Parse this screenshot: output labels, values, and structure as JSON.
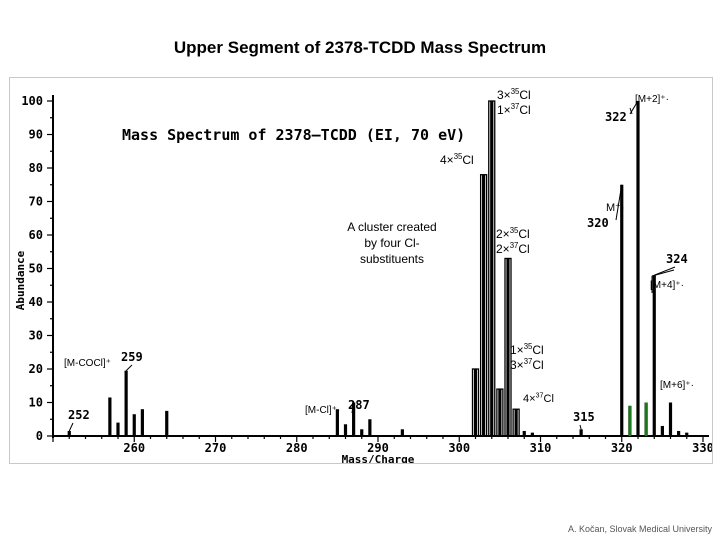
{
  "slide": {
    "title": "Upper Segment of 2378-TCDD Mass Spectrum",
    "credit": "A. Kočan, Slovak Medical University"
  },
  "chart_data": {
    "type": "bar",
    "title": "Mass Spectrum of 2378–TCDD (EI, 70 eV)",
    "xlabel": "Mass/Charge",
    "ylabel": "Abundance",
    "xlim": [
      250,
      330
    ],
    "ylim": [
      0,
      100
    ],
    "x_ticks": [
      260,
      270,
      280,
      290,
      300,
      310,
      320,
      330
    ],
    "y_ticks": [
      0,
      10,
      20,
      30,
      40,
      50,
      60,
      70,
      80,
      90,
      100
    ],
    "grid": false,
    "series": [
      {
        "x": [
          252,
          257,
          258,
          259,
          260,
          261,
          264,
          285,
          286,
          287,
          288,
          289,
          293,
          302,
          303,
          304,
          305,
          306,
          307,
          308,
          309,
          315,
          320,
          321,
          322,
          323,
          324,
          325,
          326,
          327,
          328
        ],
        "values": [
          1.5,
          11.5,
          4,
          19.5,
          6.5,
          8,
          7.5,
          8,
          3.5,
          10,
          2,
          5,
          2,
          20,
          78,
          100,
          14,
          53,
          8,
          1.5,
          1,
          2,
          75,
          9,
          100,
          10,
          48,
          3,
          10,
          1.5,
          1
        ]
      }
    ],
    "peak_labels": [
      {
        "text": "252",
        "x": 252
      },
      {
        "text": "259",
        "x": 259
      },
      {
        "text": "287",
        "x": 287
      },
      {
        "text": "315",
        "x": 315
      },
      {
        "text": "320",
        "x": 320
      },
      {
        "text": "322",
        "x": 322
      },
      {
        "text": "324",
        "x": 324
      }
    ],
    "annotations": [
      {
        "id": "cl3",
        "line1": "3×",
        "sup1": "35",
        "rest1": "Cl",
        "line2": "1×",
        "sup2": "37",
        "rest2": "Cl"
      },
      {
        "id": "cl4",
        "line1": "4×",
        "sup1": "35",
        "rest1": "Cl"
      },
      {
        "id": "cl2",
        "line1": "2×",
        "sup1": "35",
        "rest1": "Cl",
        "line2": "2×",
        "sup2": "37",
        "rest2": "Cl"
      },
      {
        "id": "cl1",
        "line1": "1×",
        "sup1": "35",
        "rest1": "Cl",
        "line2": "3×",
        "sup2": "37",
        "rest2": "Cl"
      },
      {
        "id": "cl0",
        "line1": "4×",
        "sup1": "37",
        "rest1": "Cl"
      },
      {
        "id": "cluster",
        "lines": [
          "A cluster created",
          "by four Cl-",
          "substituents"
        ]
      },
      {
        "id": "m2",
        "text": "[M+2]⁺·"
      },
      {
        "id": "m",
        "text": "M⁺·"
      },
      {
        "id": "m4",
        "text": "[M+4]⁺·"
      },
      {
        "id": "m6",
        "text": "[M+6]⁺·"
      },
      {
        "id": "mcocl",
        "text": "[M-COCl]⁺"
      },
      {
        "id": "mcl",
        "text": "[M-Cl]⁺·"
      }
    ]
  }
}
